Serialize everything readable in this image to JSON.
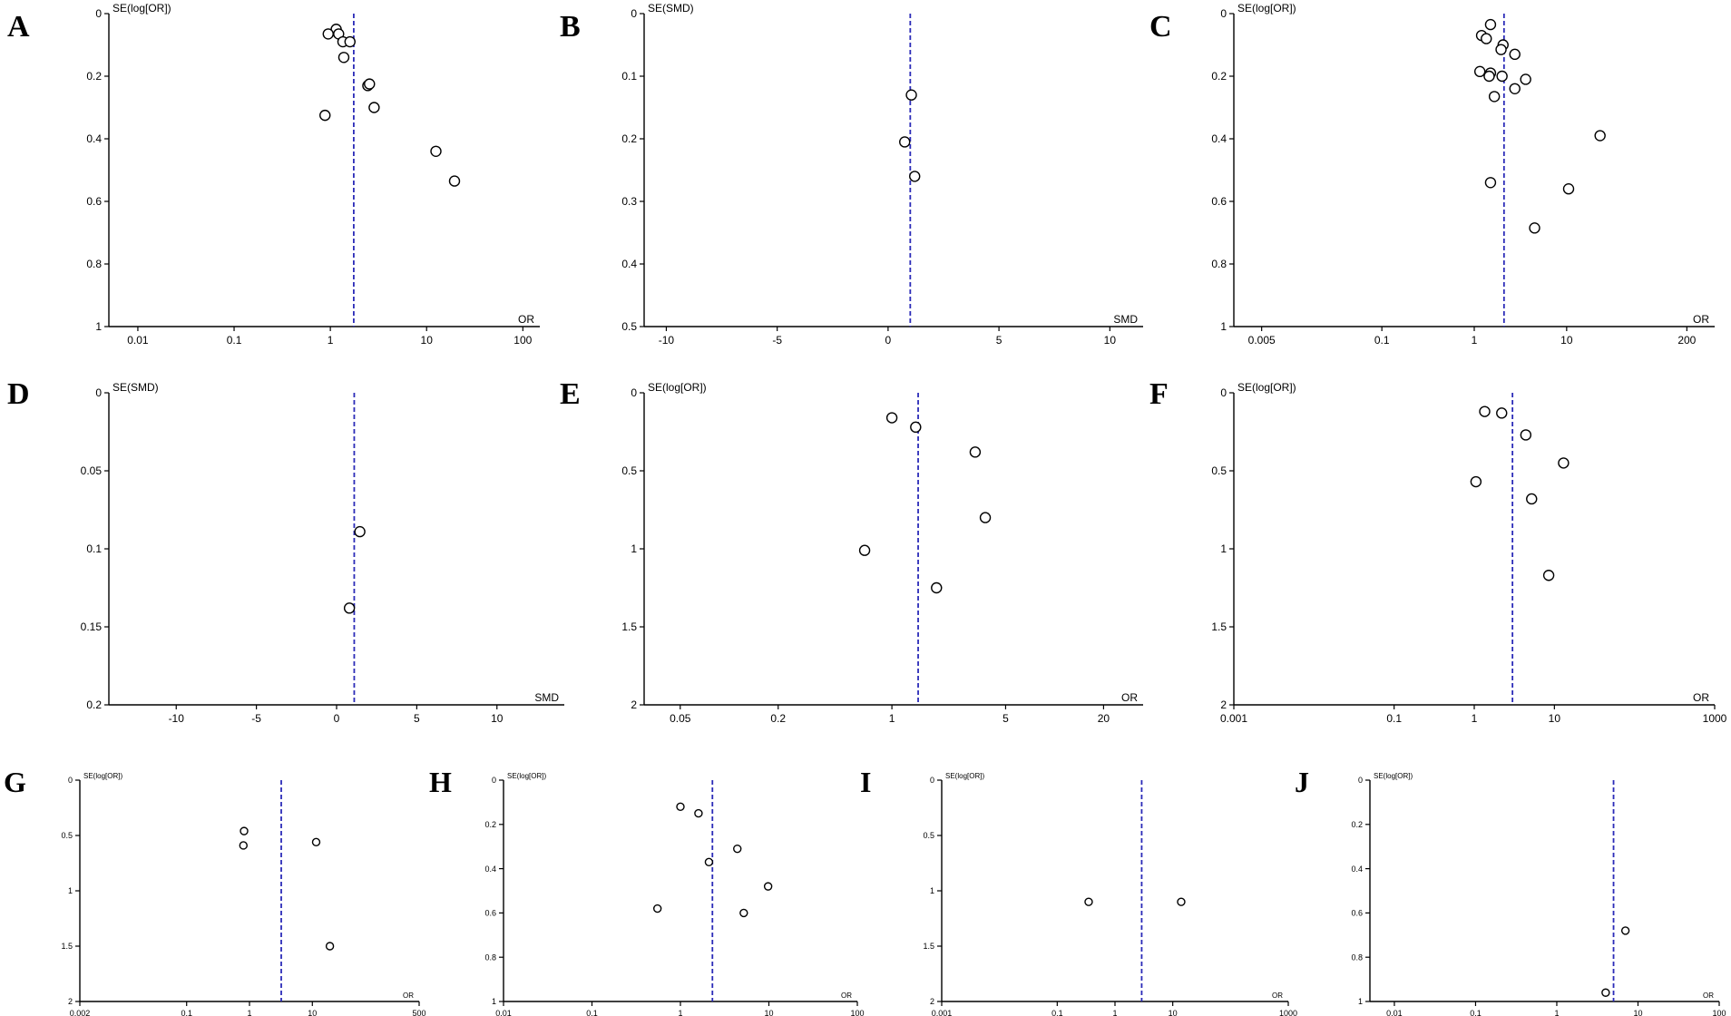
{
  "colors": {
    "reference_line": "#2b2bb8",
    "point_stroke": "#000000",
    "background": "#ffffff"
  },
  "chart_data": [
    {
      "panel": "A",
      "type": "scatter",
      "xscale": "log",
      "xlim": [
        0.005,
        150
      ],
      "ylim": [
        0,
        1
      ],
      "ylabel": "SE(log[OR])",
      "xlabel": "OR",
      "xticks": [
        0.01,
        0.1,
        1,
        10,
        100
      ],
      "xtick_labels": [
        "0.01",
        "0.1",
        "1",
        "10",
        "100"
      ],
      "yticks": [
        0,
        0.2,
        0.4,
        0.6,
        0.8,
        1
      ],
      "ytick_labels": [
        "0",
        "0.2",
        "0.4",
        "0.6",
        "0.8",
        "1"
      ],
      "reference_x": 1.75,
      "x": [
        1.15,
        1.22,
        0.95,
        1.35,
        1.6,
        1.38,
        2.45,
        2.55,
        2.85,
        0.88,
        12.5,
        19.5
      ],
      "y": [
        0.05,
        0.065,
        0.065,
        0.09,
        0.09,
        0.14,
        0.23,
        0.225,
        0.3,
        0.325,
        0.44,
        0.535
      ]
    },
    {
      "panel": "B",
      "type": "scatter",
      "xscale": "linear",
      "xlim": [
        -11,
        11.5
      ],
      "ylim": [
        0,
        0.5
      ],
      "ylabel": "SE(SMD)",
      "xlabel": "SMD",
      "xticks": [
        -10,
        -5,
        0,
        5,
        10
      ],
      "xtick_labels": [
        "-10",
        "-5",
        "0",
        "5",
        "10"
      ],
      "yticks": [
        0,
        0.1,
        0.2,
        0.3,
        0.4,
        0.5
      ],
      "ytick_labels": [
        "0",
        "0.1",
        "0.2",
        "0.3",
        "0.4",
        "0.5"
      ],
      "reference_x": 1.0,
      "x": [
        1.05,
        0.75,
        1.2
      ],
      "y": [
        0.13,
        0.205,
        0.26
      ]
    },
    {
      "panel": "C",
      "type": "scatter",
      "xscale": "log",
      "xlim": [
        0.0025,
        400
      ],
      "ylim": [
        0,
        1
      ],
      "ylabel": "SE(log[OR])",
      "xlabel": "OR",
      "xticks": [
        0.005,
        0.1,
        1,
        10,
        200
      ],
      "xtick_labels": [
        "0.005",
        "0.1",
        "1",
        "10",
        "200"
      ],
      "yticks": [
        0,
        0.2,
        0.4,
        0.6,
        0.8,
        1
      ],
      "ytick_labels": [
        "0",
        "0.2",
        "0.4",
        "0.6",
        "0.8",
        "1"
      ],
      "reference_x": 2.1,
      "x": [
        1.5,
        1.2,
        1.35,
        2.05,
        1.95,
        2.75,
        1.15,
        1.5,
        1.45,
        2.0,
        3.6,
        2.75,
        1.65,
        23,
        1.5,
        10.5,
        4.5
      ],
      "y": [
        0.035,
        0.07,
        0.08,
        0.1,
        0.115,
        0.13,
        0.185,
        0.19,
        0.2,
        0.2,
        0.21,
        0.24,
        0.265,
        0.39,
        0.54,
        0.56,
        0.685
      ]
    },
    {
      "panel": "D",
      "type": "scatter",
      "xscale": "linear",
      "xlim": [
        -14.2,
        14.2
      ],
      "ylim": [
        0,
        0.2
      ],
      "ylabel": "SE(SMD)",
      "xlabel": "SMD",
      "xticks": [
        -10,
        -5,
        0,
        5,
        10
      ],
      "xtick_labels": [
        "-10",
        "-5",
        "0",
        "5",
        "10"
      ],
      "yticks": [
        0,
        0.05,
        0.1,
        0.15,
        0.2
      ],
      "ytick_labels": [
        "0",
        "0.05",
        "0.1",
        "0.15",
        "0.2"
      ],
      "reference_x": 1.1,
      "x": [
        1.45,
        0.8
      ],
      "y": [
        0.089,
        0.138
      ]
    },
    {
      "panel": "E",
      "type": "scatter",
      "xscale": "log",
      "xlim": [
        0.03,
        35
      ],
      "ylim": [
        0,
        2
      ],
      "ylabel": "SE(log[OR])",
      "xlabel": "OR",
      "xticks": [
        0.05,
        0.2,
        1,
        5,
        20
      ],
      "xtick_labels": [
        "0.05",
        "0.2",
        "1",
        "5",
        "20"
      ],
      "yticks": [
        0,
        0.5,
        1,
        1.5,
        2
      ],
      "ytick_labels": [
        "0",
        "0.5",
        "1",
        "1.5",
        "2"
      ],
      "reference_x": 1.45,
      "x": [
        1.0,
        1.4,
        3.25,
        3.75,
        0.68,
        1.88
      ],
      "y": [
        0.16,
        0.22,
        0.38,
        0.8,
        1.01,
        1.25
      ]
    },
    {
      "panel": "F",
      "type": "scatter",
      "xscale": "log",
      "xlim": [
        0.001,
        1000
      ],
      "ylim": [
        0,
        2
      ],
      "ylabel": "SE(log[OR])",
      "xlabel": "OR",
      "xticks": [
        0.001,
        0.1,
        1,
        10,
        1000
      ],
      "xtick_labels": [
        "0.001",
        "0.1",
        "1",
        "10",
        "1000"
      ],
      "yticks": [
        0,
        0.5,
        1,
        1.5,
        2
      ],
      "ytick_labels": [
        "0",
        "0.5",
        "1",
        "1.5",
        "2"
      ],
      "reference_x": 3.0,
      "x": [
        1.35,
        2.2,
        4.4,
        13,
        1.05,
        5.2,
        8.5
      ],
      "y": [
        0.12,
        0.13,
        0.27,
        0.45,
        0.57,
        0.68,
        1.17
      ]
    },
    {
      "panel": "G",
      "type": "scatter",
      "xscale": "log",
      "xlim": [
        0.002,
        500
      ],
      "ylim": [
        0,
        2
      ],
      "ylabel": "SE(log[OR])",
      "xlabel": "OR",
      "xticks": [
        0.002,
        0.1,
        1,
        10,
        500
      ],
      "xtick_labels": [
        "0.002",
        "0.1",
        "1",
        "10",
        "500"
      ],
      "yticks": [
        0,
        0.5,
        1,
        1.5,
        2
      ],
      "ytick_labels": [
        "0",
        "0.5",
        "1",
        "1.5",
        "2"
      ],
      "reference_x": 3.2,
      "x": [
        0.82,
        0.8,
        11.5,
        19
      ],
      "y": [
        0.46,
        0.59,
        0.56,
        1.5
      ]
    },
    {
      "panel": "H",
      "type": "scatter",
      "xscale": "log",
      "xlim": [
        0.01,
        100
      ],
      "ylim": [
        0,
        1
      ],
      "ylabel": "SE(log[OR])",
      "xlabel": "OR",
      "xticks": [
        0.01,
        0.1,
        1,
        10,
        100
      ],
      "xtick_labels": [
        "0.01",
        "0.1",
        "1",
        "10",
        "100"
      ],
      "yticks": [
        0,
        0.2,
        0.4,
        0.6,
        0.8,
        1
      ],
      "ytick_labels": [
        "0",
        "0.2",
        "0.4",
        "0.6",
        "0.8",
        "1"
      ],
      "reference_x": 2.3,
      "x": [
        1.0,
        1.6,
        4.4,
        2.1,
        9.8,
        0.55,
        5.2
      ],
      "y": [
        0.12,
        0.15,
        0.31,
        0.37,
        0.48,
        0.58,
        0.6
      ]
    },
    {
      "panel": "I",
      "type": "scatter",
      "xscale": "log",
      "xlim": [
        0.001,
        1000
      ],
      "ylim": [
        0,
        2
      ],
      "ylabel": "SE(log[OR])",
      "xlabel": "OR",
      "xticks": [
        0.001,
        0.1,
        1,
        10,
        1000
      ],
      "xtick_labels": [
        "0.001",
        "0.1",
        "1",
        "10",
        "1000"
      ],
      "yticks": [
        0,
        0.5,
        1,
        1.5,
        2
      ],
      "ytick_labels": [
        "0",
        "0.5",
        "1",
        "1.5",
        "2"
      ],
      "reference_x": 2.9,
      "x": [
        0.35,
        14
      ],
      "y": [
        1.1,
        1.1
      ]
    },
    {
      "panel": "J",
      "type": "scatter",
      "xscale": "log",
      "xlim": [
        0.005,
        100
      ],
      "ylim": [
        0,
        1
      ],
      "ylabel": "SE(log[OR])",
      "xlabel": "OR",
      "xticks": [
        0.01,
        0.1,
        1,
        10,
        100
      ],
      "xtick_labels": [
        "0.01",
        "0.1",
        "1",
        "10",
        "100"
      ],
      "yticks": [
        0,
        0.2,
        0.4,
        0.6,
        0.8,
        1
      ],
      "ytick_labels": [
        "0",
        "0.2",
        "0.4",
        "0.6",
        "0.8",
        "1"
      ],
      "reference_x": 5.0,
      "x": [
        7.0,
        4.0
      ],
      "y": [
        0.68,
        0.96
      ]
    }
  ]
}
